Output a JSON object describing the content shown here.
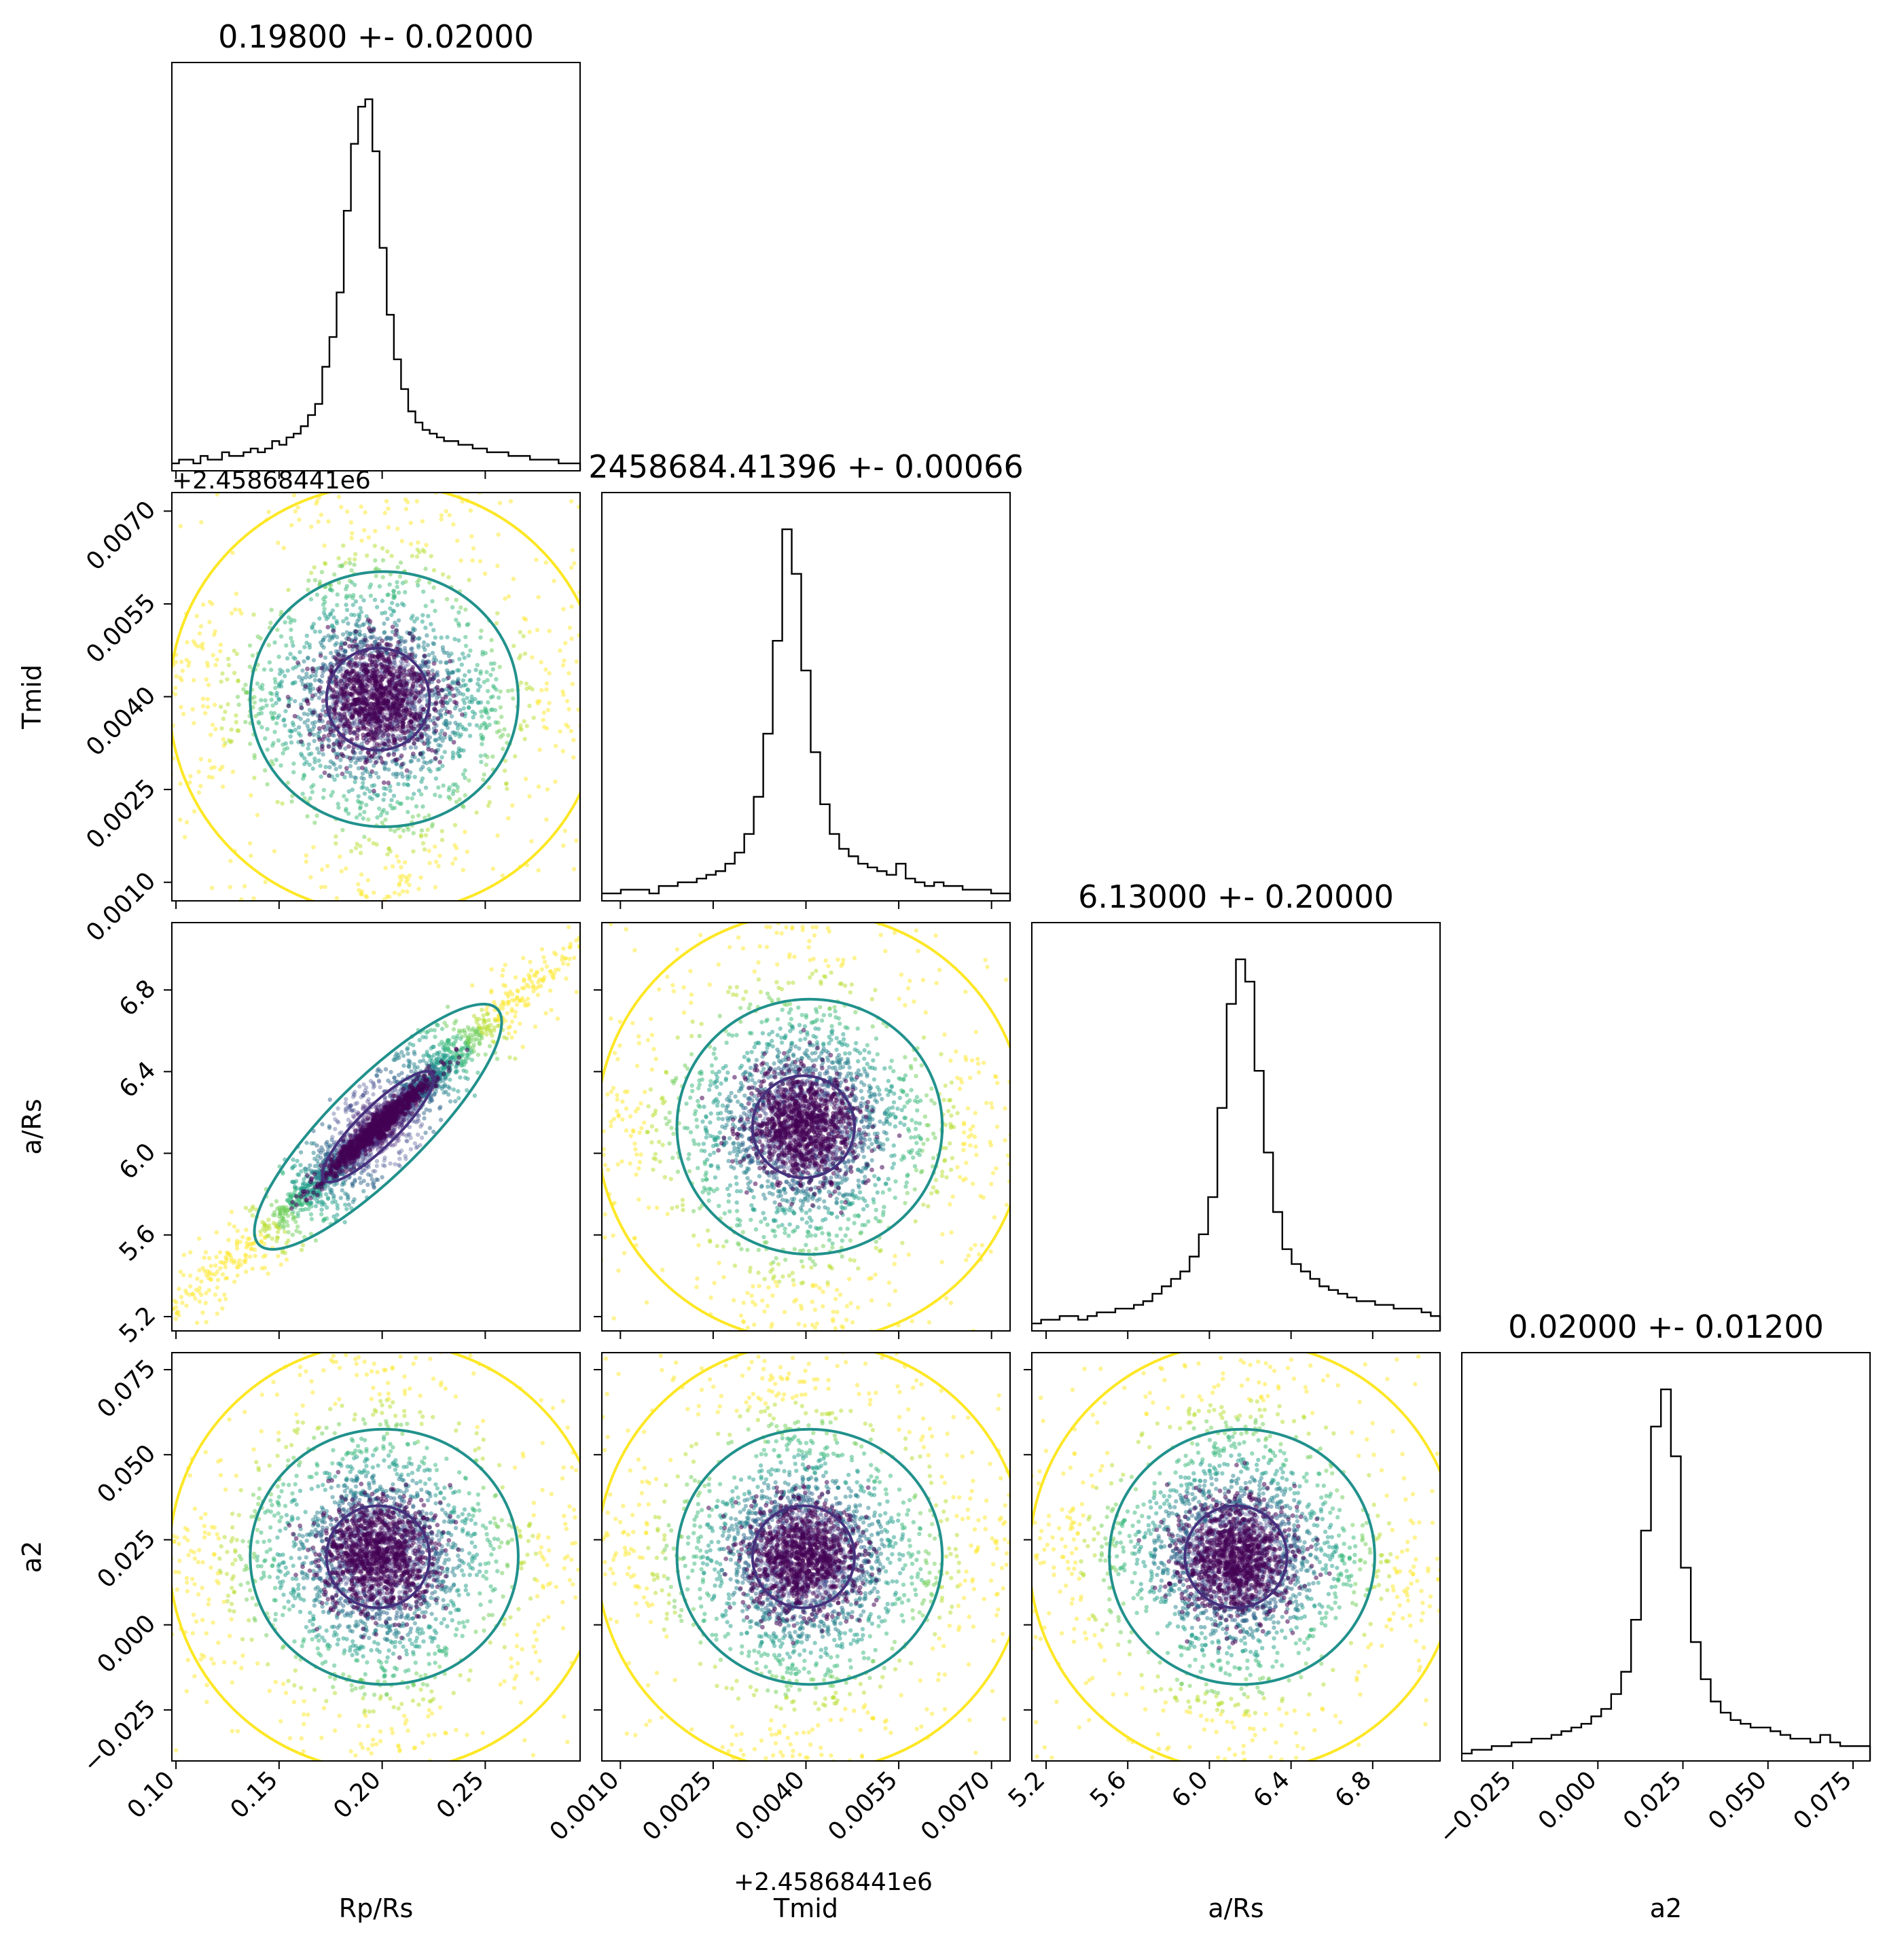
{
  "colors": {
    "hist": "#000000",
    "inner_contour": "#46307e",
    "mid_contour": "#21918c",
    "outer_contour": "#fde725",
    "dense_points": "#440154"
  },
  "chart_data": {
    "type": "scatter",
    "description_kind": "corner plot",
    "parameters": [
      {
        "key": "rp",
        "label": "R$_p$/R$_s$",
        "label_display": "Rp/Rs",
        "range": [
          0.098,
          0.296
        ],
        "ticks": [
          0.1,
          0.15,
          0.2,
          0.25
        ],
        "tick_labels": [
          "0.10",
          "0.15",
          "0.20",
          "0.25"
        ],
        "median": 0.198,
        "sigma": 0.02,
        "hist_title": "0.19800 +- 0.02000"
      },
      {
        "key": "tmid",
        "label": "T$_{mid}$",
        "label_display": "Tmid",
        "range": [
          0.0007,
          0.0073
        ],
        "ticks": [
          0.001,
          0.0025,
          0.004,
          0.0055,
          0.007
        ],
        "tick_labels": [
          "0.0010",
          "0.0025",
          "0.0040",
          "0.0055",
          "0.0070"
        ],
        "median": 0.00396,
        "sigma": 0.00066,
        "hist_title": "2458684.41396 +- 0.00066",
        "offset_text": "+2.45868441e6"
      },
      {
        "key": "ars",
        "label": "a/R$_s$",
        "label_display": "a/Rs",
        "range": [
          5.13,
          7.13
        ],
        "ticks": [
          5.2,
          5.6,
          6.0,
          6.4,
          6.8
        ],
        "tick_labels": [
          "5.2",
          "5.6",
          "6.0",
          "6.4",
          "6.8"
        ],
        "median": 6.13,
        "sigma": 0.2,
        "hist_title": "6.13000 +- 0.20000"
      },
      {
        "key": "a2",
        "label": "a$_2$",
        "label_display": "a2",
        "range": [
          -0.04,
          0.08
        ],
        "ticks": [
          -0.025,
          0.0,
          0.025,
          0.05,
          0.075
        ],
        "tick_labels": [
          "−0.025",
          "0.000",
          "0.025",
          "0.050",
          "0.075"
        ],
        "median": 0.02,
        "sigma": 0.012,
        "hist_title": "0.02000 +- 0.01200"
      }
    ],
    "histograms": {
      "rp": [
        2,
        3,
        3,
        2,
        4,
        3,
        3,
        5,
        4,
        4,
        5,
        6,
        5,
        6,
        8,
        7,
        9,
        10,
        12,
        15,
        18,
        28,
        36,
        48,
        70,
        88,
        98,
        100,
        86,
        60,
        42,
        30,
        22,
        16,
        13,
        11,
        10,
        9,
        8,
        8,
        7,
        7,
        6,
        6,
        5,
        5,
        5,
        4,
        4,
        4,
        3,
        3,
        3,
        3,
        2,
        2,
        2
      ],
      "tmid": [
        2,
        2,
        3,
        3,
        3,
        2,
        4,
        4,
        5,
        5,
        6,
        7,
        8,
        10,
        13,
        18,
        28,
        45,
        70,
        100,
        88,
        62,
        40,
        26,
        18,
        14,
        12,
        10,
        9,
        8,
        7,
        10,
        6,
        5,
        4,
        5,
        4,
        4,
        3,
        3,
        3,
        2,
        2
      ],
      "ars": [
        2,
        3,
        3,
        4,
        4,
        3,
        4,
        5,
        5,
        6,
        6,
        7,
        8,
        10,
        12,
        14,
        16,
        20,
        26,
        36,
        60,
        88,
        100,
        94,
        70,
        48,
        32,
        22,
        18,
        16,
        14,
        12,
        11,
        10,
        9,
        8,
        8,
        7,
        7,
        6,
        6,
        6,
        5,
        4
      ],
      "a2": [
        2,
        3,
        3,
        4,
        4,
        5,
        5,
        6,
        6,
        7,
        8,
        9,
        10,
        12,
        14,
        18,
        24,
        38,
        62,
        90,
        100,
        82,
        52,
        32,
        22,
        16,
        13,
        11,
        10,
        9,
        9,
        8,
        7,
        6,
        6,
        5,
        7,
        5,
        4,
        4,
        4
      ]
    },
    "correlations": {
      "ars_rp": 0.92
    }
  }
}
